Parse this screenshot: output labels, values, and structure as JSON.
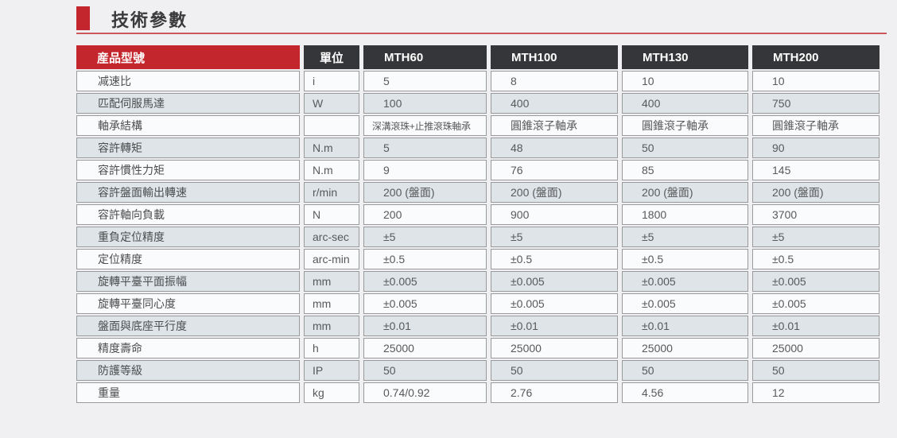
{
  "page": {
    "title": "技術參數"
  },
  "colors": {
    "accent_red": "#c4262d",
    "header_dark": "#353639",
    "row_shaded": "#dee4e7",
    "row_plain": "#fafbfc",
    "page_background": "#f0f0f2"
  },
  "table": {
    "header": {
      "product_label": "産品型號",
      "unit_label": "單位",
      "models": [
        "MTH60",
        "MTH100",
        "MTH130",
        "MTH200"
      ]
    },
    "rows": [
      {
        "label": "减速比",
        "unit": "i",
        "values": [
          "5",
          "8",
          "10",
          "10"
        ]
      },
      {
        "label": "匹配伺服馬達",
        "unit": "W",
        "values": [
          "100",
          "400",
          "400",
          "750"
        ]
      },
      {
        "label": "軸承結構",
        "unit": "",
        "values": [
          "深溝滾珠+止推滾珠軸承",
          "圓錐滾子軸承",
          "圓錐滾子軸承",
          "圓錐滾子軸承"
        ]
      },
      {
        "label": "容許轉矩",
        "unit": "N.m",
        "values": [
          "5",
          "48",
          "50",
          "90"
        ]
      },
      {
        "label": "容許慣性力矩",
        "unit": "N.m",
        "values": [
          "9",
          "76",
          "85",
          "145"
        ]
      },
      {
        "label": "容許盤面輸出轉速",
        "unit": "r/min",
        "values": [
          "200 (盤面)",
          "200 (盤面)",
          "200 (盤面)",
          "200 (盤面)"
        ]
      },
      {
        "label": "容許軸向負載",
        "unit": "N",
        "values": [
          "200",
          "900",
          "1800",
          "3700"
        ]
      },
      {
        "label": "重負定位精度",
        "unit": "arc-sec",
        "values": [
          "±5",
          "±5",
          "±5",
          "±5"
        ]
      },
      {
        "label": "定位精度",
        "unit": "arc-min",
        "values": [
          "±0.5",
          "±0.5",
          "±0.5",
          "±0.5"
        ]
      },
      {
        "label": "旋轉平臺平面振幅",
        "unit": "mm",
        "values": [
          "±0.005",
          "±0.005",
          "±0.005",
          "±0.005"
        ]
      },
      {
        "label": "旋轉平臺同心度",
        "unit": "mm",
        "values": [
          "±0.005",
          "±0.005",
          "±0.005",
          "±0.005"
        ]
      },
      {
        "label": "盤面與底座平行度",
        "unit": "mm",
        "values": [
          "±0.01",
          "±0.01",
          "±0.01",
          "±0.01"
        ]
      },
      {
        "label": "精度壽命",
        "unit": "h",
        "values": [
          "25000",
          "25000",
          "25000",
          "25000"
        ]
      },
      {
        "label": "防護等級",
        "unit": "IP",
        "values": [
          "50",
          "50",
          "50",
          "50"
        ]
      },
      {
        "label": "重量",
        "unit": "kg",
        "values": [
          "0.74/0.92",
          "2.76",
          "4.56",
          "12"
        ]
      }
    ]
  }
}
